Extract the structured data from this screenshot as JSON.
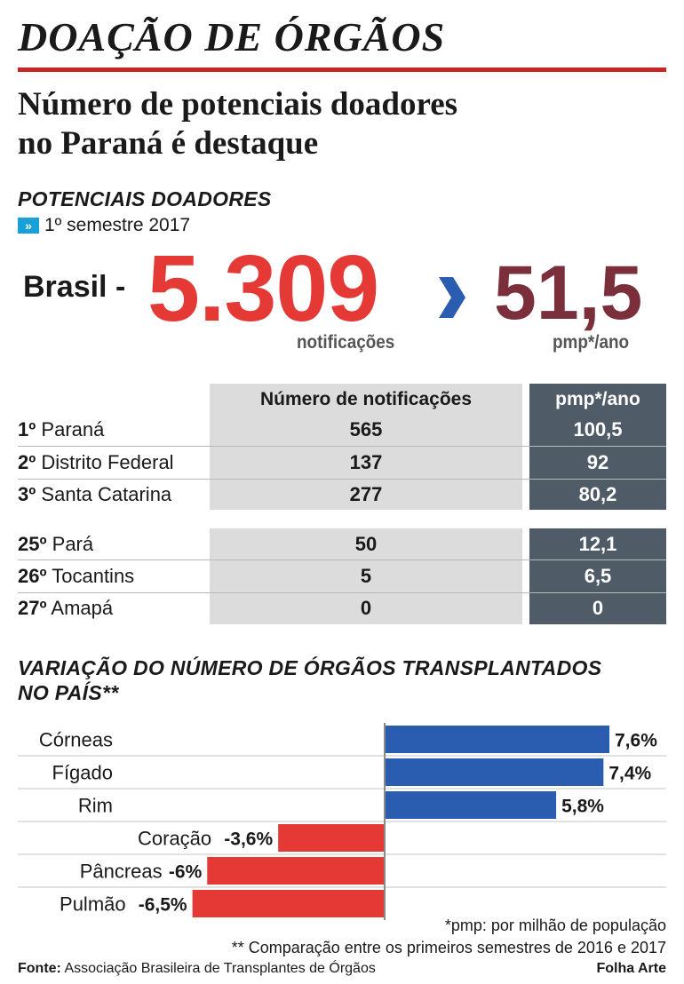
{
  "header": {
    "title": "DOAÇÃO DE ÓRGÃOS",
    "headline_line1": "Número de potenciais doadores",
    "headline_line2": "no Paraná é destaque"
  },
  "potential_donors": {
    "section_title": "POTENCIAIS DOADORES",
    "period": "1º semestre 2017",
    "country_label": "Brasil -",
    "total_notifications": "5.309",
    "notifications_caption": "notificações",
    "rate": "51,5",
    "rate_caption": "pmp*/ano"
  },
  "ranking_table": {
    "col_notifications": "Número de notificações",
    "col_rate": "pmp*/ano",
    "rows": [
      {
        "rank": "1º",
        "state": "Paraná",
        "notifications": "565",
        "rate": "100,5"
      },
      {
        "rank": "2º",
        "state": "Distrito Federal",
        "notifications": "137",
        "rate": "92"
      },
      {
        "rank": "3º",
        "state": "Santa Catarina",
        "notifications": "277",
        "rate": "80,2"
      },
      {
        "rank": "25º",
        "state": "Pará",
        "notifications": "50",
        "rate": "12,1"
      },
      {
        "rank": "26º",
        "state": "Tocantins",
        "notifications": "5",
        "rate": "6,5"
      },
      {
        "rank": "27º",
        "state": "Amapá",
        "notifications": "0",
        "rate": "0"
      }
    ]
  },
  "transplant_variation": {
    "section_title_line1": "VARIAÇÃO DO NÚMERO DE ÓRGÃOS TRANSPLANTADOS",
    "section_title_line2": "NO PAÍS**"
  },
  "chart_data": {
    "type": "bar",
    "orientation": "horizontal",
    "title": "VARIAÇÃO DO NÚMERO DE ÓRGÃOS TRANSPLANTADOS NO PAÍS**",
    "categories": [
      "Córneas",
      "Fígado",
      "Rim",
      "Coração",
      "Pâncreas",
      "Pulmão"
    ],
    "values": [
      7.6,
      7.4,
      5.8,
      -3.6,
      -6,
      -6.5
    ],
    "value_labels": [
      "7,6%",
      "7,4%",
      "5,8%",
      "-3,6%",
      "-6%",
      "-6,5%"
    ],
    "xlim": [
      -12,
      7.6
    ],
    "positive_color": "#2a5db0",
    "negative_color": "#e53935",
    "grid": false,
    "legend": "none"
  },
  "colors": {
    "accent_red": "#e53935",
    "rate_maroon": "#7a2f3a",
    "arrow_blue": "#2a5db0",
    "table_gray": "#dcdcdc",
    "table_dark": "#4f5b66"
  },
  "footnotes": {
    "pmp": "*pmp: por milhão de população",
    "comparison": "** Comparação entre os primeiros semestres de 2016 e 2017"
  },
  "footer": {
    "source_label": "Fonte:",
    "source_text": "Associação Brasileira de Transplantes de Órgãos",
    "credit": "Folha Arte"
  }
}
